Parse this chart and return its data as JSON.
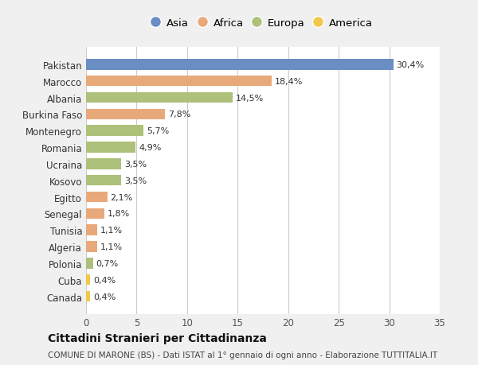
{
  "countries": [
    "Pakistan",
    "Marocco",
    "Albania",
    "Burkina Faso",
    "Montenegro",
    "Romania",
    "Ucraina",
    "Kosovo",
    "Egitto",
    "Senegal",
    "Tunisia",
    "Algeria",
    "Polonia",
    "Cuba",
    "Canada"
  ],
  "values": [
    30.4,
    18.4,
    14.5,
    7.8,
    5.7,
    4.9,
    3.5,
    3.5,
    2.1,
    1.8,
    1.1,
    1.1,
    0.7,
    0.4,
    0.4
  ],
  "labels": [
    "30,4%",
    "18,4%",
    "14,5%",
    "7,8%",
    "5,7%",
    "4,9%",
    "3,5%",
    "3,5%",
    "2,1%",
    "1,8%",
    "1,1%",
    "1,1%",
    "0,7%",
    "0,4%",
    "0,4%"
  ],
  "colors": [
    "#6a8dc4",
    "#e8a97a",
    "#adc17a",
    "#e8a97a",
    "#adc17a",
    "#adc17a",
    "#adc17a",
    "#adc17a",
    "#e8a97a",
    "#e8a97a",
    "#e8a97a",
    "#e8a97a",
    "#adc17a",
    "#f0c84a",
    "#f0c84a"
  ],
  "legend_labels": [
    "Asia",
    "Africa",
    "Europa",
    "America"
  ],
  "legend_colors": [
    "#6a8dc4",
    "#e8a97a",
    "#adc17a",
    "#f0c84a"
  ],
  "xlim": [
    0,
    35
  ],
  "xticks": [
    0,
    5,
    10,
    15,
    20,
    25,
    30,
    35
  ],
  "title": "Cittadini Stranieri per Cittadinanza",
  "subtitle": "COMUNE DI MARONE (BS) - Dati ISTAT al 1° gennaio di ogni anno - Elaborazione TUTTITALIA.IT",
  "bg_color": "#f0f0f0",
  "plot_bg_color": "#ffffff",
  "grid_color": "#cccccc",
  "bar_height": 0.65
}
